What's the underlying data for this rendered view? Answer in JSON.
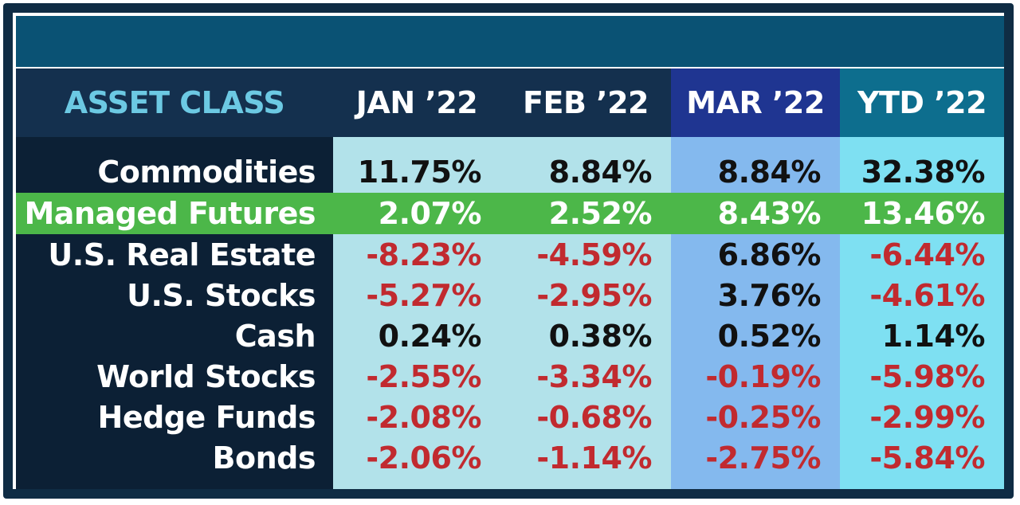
{
  "colors": {
    "header_bg": "#14304e",
    "mar_header_bg": "#1f3591",
    "ytd_header_bg": "#0d6e8e",
    "asset_header_text": "#6cc9e3",
    "label_column_bg": "#0c2035",
    "jan_feb_column_bg": "#b2e2ea",
    "mar_column_bg": "#84b9ee",
    "ytd_column_bg": "#7ee0f2",
    "highlight_row_bg": "#4cb749",
    "negative_text": "#c12a2f",
    "positive_text": "#111111"
  },
  "chart_data": {
    "type": "table",
    "headers": [
      "ASSET CLASS",
      "JAN ’22",
      "FEB ’22",
      "MAR ’22",
      "YTD ’22"
    ],
    "highlight_row": "Managed Futures",
    "rows": [
      {
        "label": "Commodities",
        "values": [
          "11.75%",
          "8.84%",
          "8.84%",
          "32.38%"
        ]
      },
      {
        "label": "Managed Futures",
        "values": [
          "2.07%",
          "2.52%",
          "8.43%",
          "13.46%"
        ]
      },
      {
        "label": "U.S. Real Estate",
        "values": [
          "-8.23%",
          "-4.59%",
          "6.86%",
          "-6.44%"
        ]
      },
      {
        "label": "U.S. Stocks",
        "values": [
          "-5.27%",
          "-2.95%",
          "3.76%",
          "-4.61%"
        ]
      },
      {
        "label": "Cash",
        "values": [
          "0.24%",
          "0.38%",
          "0.52%",
          "1.14%"
        ]
      },
      {
        "label": "World Stocks",
        "values": [
          "-2.55%",
          "-3.34%",
          "-0.19%",
          "-5.98%"
        ]
      },
      {
        "label": "Hedge Funds",
        "values": [
          "-2.08%",
          "-0.68%",
          "-0.25%",
          "-2.99%"
        ]
      },
      {
        "label": "Bonds",
        "values": [
          "-2.06%",
          "-1.14%",
          "-2.75%",
          "-5.84%"
        ]
      }
    ]
  }
}
